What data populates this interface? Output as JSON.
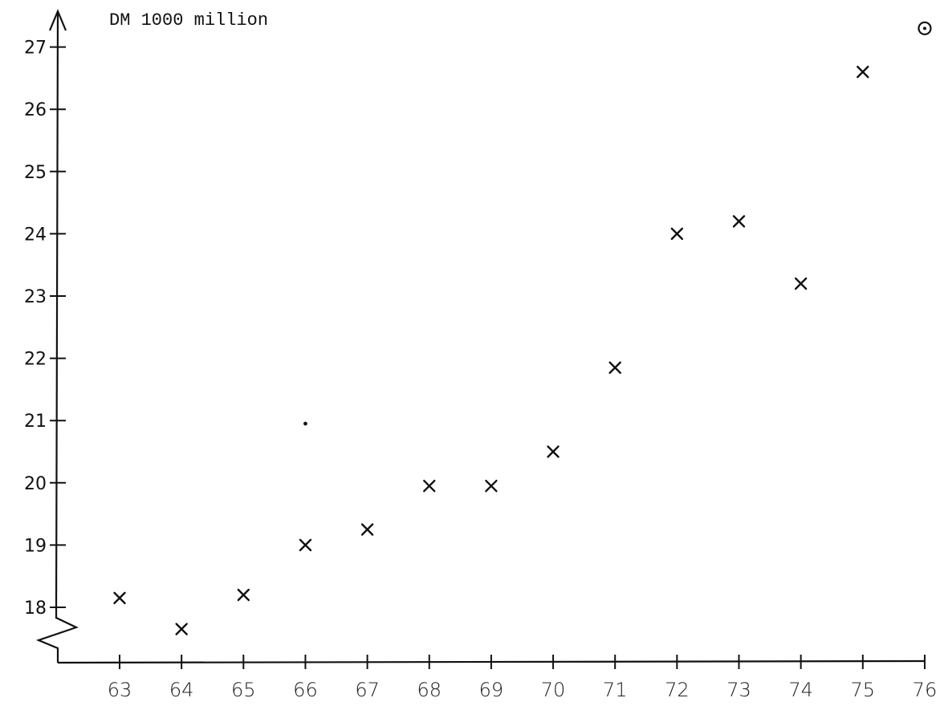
{
  "chart_data": {
    "type": "scatter",
    "title": "",
    "xlabel": "",
    "ylabel": "DM 1000 million",
    "x": [
      63,
      64,
      65,
      66,
      67,
      68,
      69,
      70,
      71,
      72,
      73,
      74,
      75
    ],
    "series": [
      {
        "values": [
          18.15,
          17.65,
          18.2,
          19.0,
          19.25,
          19.95,
          19.95,
          20.5,
          21.85,
          24.0,
          24.2,
          23.2,
          26.6
        ]
      }
    ],
    "extra_points": [
      {
        "x": 76,
        "y": 27.3,
        "marker": "circled-dot"
      },
      {
        "x": 66,
        "y": 20.95,
        "marker": "dot"
      }
    ],
    "xlim": [
      62.2,
      76.2
    ],
    "ylim": [
      17,
      27.5
    ],
    "x_ticks": [
      "63",
      "64",
      "65",
      "66",
      "67",
      "68",
      "69",
      "70",
      "71",
      "72",
      "73",
      "74",
      "75",
      "76"
    ],
    "y_ticks": [
      "18",
      "19",
      "20",
      "21",
      "22",
      "23",
      "24",
      "25",
      "26",
      "27"
    ],
    "axis_break": true,
    "grid": false,
    "colors": {
      "ink": "#111111",
      "background": "#ffffff"
    }
  }
}
